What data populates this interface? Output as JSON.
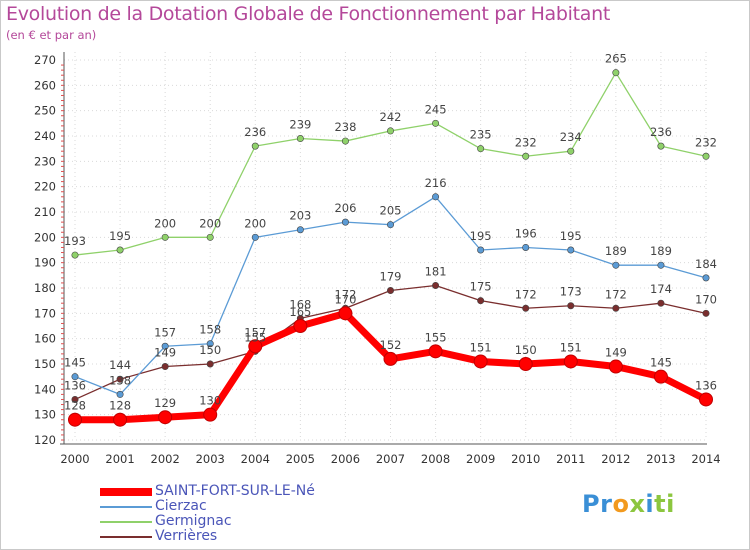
{
  "chart_data": {
    "type": "line",
    "title": "Evolution de la Dotation Globale de Fonctionnement par Habitant",
    "subtitle": "(en € et par an)",
    "xlabel": "",
    "ylabel": "",
    "ylim": [
      120,
      270
    ],
    "ytick_step": 10,
    "grid": true,
    "categories": [
      "2000",
      "2001",
      "2002",
      "2003",
      "2004",
      "2005",
      "2006",
      "2007",
      "2008",
      "2009",
      "2010",
      "2011",
      "2012",
      "2013",
      "2014"
    ],
    "series": [
      {
        "name": "SAINT-FORT-SUR-LE-Né",
        "color": "#ff0000",
        "values": [
          128,
          128,
          129,
          130,
          157,
          165,
          170,
          152,
          155,
          151,
          150,
          151,
          149,
          145,
          136
        ]
      },
      {
        "name": "Cierzac",
        "color": "#5b9bd5",
        "values": [
          145,
          138,
          157,
          158,
          200,
          203,
          206,
          205,
          216,
          195,
          196,
          195,
          189,
          189,
          184
        ]
      },
      {
        "name": "Germignac",
        "color": "#8fd16a",
        "values": [
          193,
          195,
          200,
          200,
          236,
          239,
          238,
          242,
          245,
          235,
          232,
          234,
          265,
          236,
          232
        ]
      },
      {
        "name": "Verrières",
        "color": "#7a2e2e",
        "values": [
          136,
          144,
          149,
          150,
          155,
          168,
          172,
          179,
          181,
          175,
          172,
          173,
          172,
          174,
          170
        ]
      }
    ]
  },
  "logo": {
    "parts": [
      {
        "text": "Pr",
        "color": "#3a8fd6"
      },
      {
        "text": "o",
        "color": "#f29a1f"
      },
      {
        "text": "x",
        "color": "#8cc63f"
      },
      {
        "text": "i",
        "color": "#3a8fd6"
      },
      {
        "text": "ti",
        "color": "#8cc63f"
      }
    ]
  }
}
